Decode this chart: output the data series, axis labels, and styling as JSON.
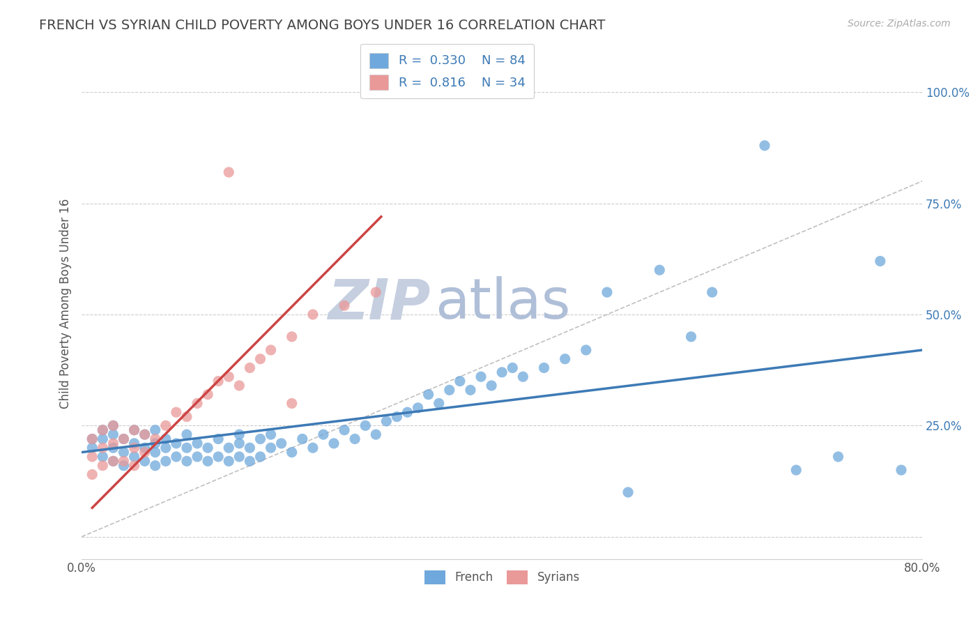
{
  "title": "FRENCH VS SYRIAN CHILD POVERTY AMONG BOYS UNDER 16 CORRELATION CHART",
  "source": "Source: ZipAtlas.com",
  "ylabel": "Child Poverty Among Boys Under 16",
  "xlim": [
    0,
    0.8
  ],
  "ylim": [
    -0.05,
    1.1
  ],
  "xticks": [
    0.0,
    0.1,
    0.2,
    0.3,
    0.4,
    0.5,
    0.6,
    0.7,
    0.8
  ],
  "xticklabels": [
    "0.0%",
    "",
    "",
    "",
    "",
    "",
    "",
    "",
    "80.0%"
  ],
  "yticks": [
    0.0,
    0.25,
    0.5,
    0.75,
    1.0
  ],
  "yticklabels": [
    "",
    "25.0%",
    "50.0%",
    "75.0%",
    "100.0%"
  ],
  "french_R": 0.33,
  "french_N": 84,
  "syrian_R": 0.816,
  "syrian_N": 34,
  "french_color": "#6fa8dc",
  "syrian_color": "#ea9999",
  "french_line_color": "#3d7ab5",
  "syrian_line_color": "#cc4444",
  "ref_line_color": "#c0c0c0",
  "background_color": "#ffffff",
  "grid_color": "#cccccc",
  "title_color": "#434343",
  "axis_color": "#555555",
  "legend_text_color": "#3d7ab5",
  "yaxis_tick_color": "#3d7ab5",
  "watermark_zip_color": "#c5cfe0",
  "watermark_atlas_color": "#b0bfd8",
  "french_x": [
    0.01,
    0.01,
    0.02,
    0.02,
    0.02,
    0.03,
    0.03,
    0.03,
    0.03,
    0.04,
    0.04,
    0.04,
    0.05,
    0.05,
    0.05,
    0.06,
    0.06,
    0.06,
    0.07,
    0.07,
    0.07,
    0.07,
    0.08,
    0.08,
    0.08,
    0.09,
    0.09,
    0.1,
    0.1,
    0.1,
    0.11,
    0.11,
    0.12,
    0.12,
    0.13,
    0.13,
    0.14,
    0.14,
    0.15,
    0.15,
    0.15,
    0.16,
    0.16,
    0.17,
    0.17,
    0.18,
    0.18,
    0.19,
    0.2,
    0.21,
    0.22,
    0.23,
    0.24,
    0.25,
    0.26,
    0.27,
    0.28,
    0.29,
    0.3,
    0.31,
    0.32,
    0.33,
    0.34,
    0.35,
    0.36,
    0.37,
    0.38,
    0.39,
    0.4,
    0.41,
    0.42,
    0.44,
    0.46,
    0.48,
    0.5,
    0.52,
    0.55,
    0.58,
    0.6,
    0.65,
    0.68,
    0.72,
    0.76,
    0.78
  ],
  "french_y": [
    0.2,
    0.22,
    0.18,
    0.22,
    0.24,
    0.17,
    0.2,
    0.23,
    0.25,
    0.16,
    0.19,
    0.22,
    0.18,
    0.21,
    0.24,
    0.17,
    0.2,
    0.23,
    0.16,
    0.19,
    0.21,
    0.24,
    0.17,
    0.2,
    0.22,
    0.18,
    0.21,
    0.17,
    0.2,
    0.23,
    0.18,
    0.21,
    0.17,
    0.2,
    0.18,
    0.22,
    0.17,
    0.2,
    0.18,
    0.21,
    0.23,
    0.17,
    0.2,
    0.22,
    0.18,
    0.2,
    0.23,
    0.21,
    0.19,
    0.22,
    0.2,
    0.23,
    0.21,
    0.24,
    0.22,
    0.25,
    0.23,
    0.26,
    0.27,
    0.28,
    0.29,
    0.32,
    0.3,
    0.33,
    0.35,
    0.33,
    0.36,
    0.34,
    0.37,
    0.38,
    0.36,
    0.38,
    0.4,
    0.42,
    0.55,
    0.1,
    0.6,
    0.45,
    0.55,
    0.88,
    0.15,
    0.18,
    0.62,
    0.15
  ],
  "syrian_x": [
    0.01,
    0.01,
    0.01,
    0.02,
    0.02,
    0.02,
    0.03,
    0.03,
    0.03,
    0.04,
    0.04,
    0.05,
    0.05,
    0.05,
    0.06,
    0.06,
    0.07,
    0.08,
    0.09,
    0.1,
    0.11,
    0.12,
    0.13,
    0.14,
    0.15,
    0.16,
    0.17,
    0.18,
    0.2,
    0.22,
    0.25,
    0.28,
    0.14,
    0.2
  ],
  "syrian_y": [
    0.14,
    0.18,
    0.22,
    0.16,
    0.2,
    0.24,
    0.17,
    0.21,
    0.25,
    0.17,
    0.22,
    0.16,
    0.2,
    0.24,
    0.19,
    0.23,
    0.22,
    0.25,
    0.28,
    0.27,
    0.3,
    0.32,
    0.35,
    0.36,
    0.34,
    0.38,
    0.4,
    0.42,
    0.45,
    0.5,
    0.52,
    0.55,
    0.82,
    0.3
  ],
  "french_trend_x": [
    0.0,
    0.8
  ],
  "french_trend_y": [
    0.19,
    0.42
  ],
  "syrian_trend_x": [
    0.01,
    0.285
  ],
  "syrian_trend_y": [
    0.065,
    0.72
  ],
  "ref_line_x": [
    0.0,
    0.8
  ],
  "ref_line_y": [
    0.0,
    0.8
  ]
}
